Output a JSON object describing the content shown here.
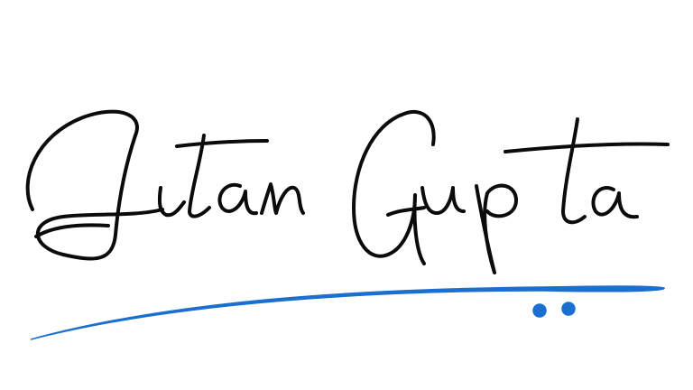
{
  "signature": {
    "text": "Jitan Gupta",
    "ink_color": "#0b0b0b",
    "accent_color": "#1a6fcf"
  }
}
